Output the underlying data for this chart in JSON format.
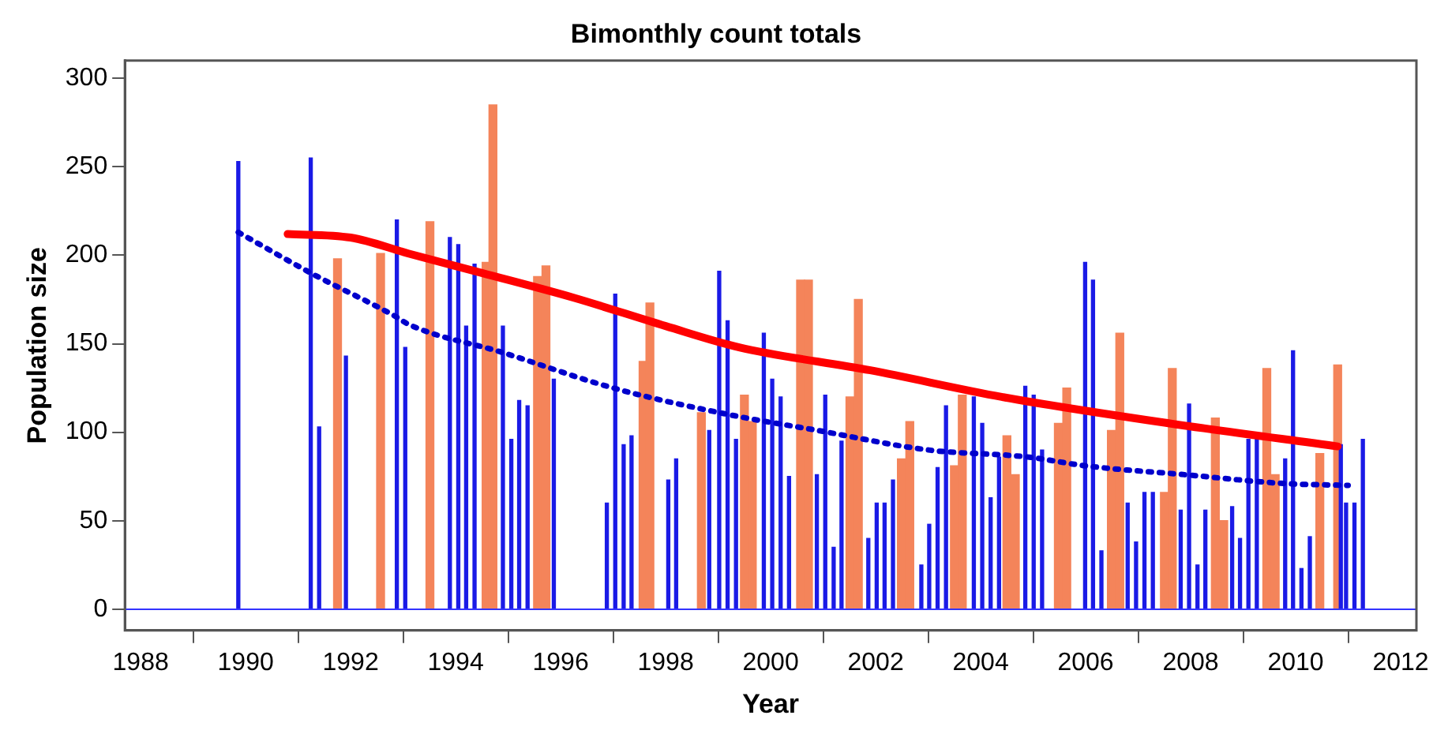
{
  "chart_data": {
    "type": "bar",
    "title": "Bimonthly count totals",
    "xlabel": "Year",
    "ylabel": "Population size",
    "xlim": [
      1987.7,
      2012.3
    ],
    "xticks": [
      1988,
      1990,
      1992,
      1994,
      1996,
      1998,
      2000,
      2002,
      2004,
      2006,
      2008,
      2010,
      2012
    ],
    "ylim": [
      -12,
      310
    ],
    "yticks": [
      0,
      50,
      100,
      150,
      200,
      250,
      300
    ],
    "grid": false,
    "legend": false,
    "ref_lines": [
      {
        "axis": "y",
        "value": 0,
        "color": "#3333ff"
      }
    ],
    "series": [
      {
        "color": "#f4845a",
        "x": [
          1991.75,
          1992.57,
          1993.51,
          1994.58,
          1994.71,
          1995.56,
          1995.72,
          1997.57,
          1997.7,
          1998.68,
          1999.5,
          1999.65,
          2000.57,
          2000.72,
          2001.51,
          2001.67,
          2002.49,
          2002.65,
          2003.5,
          2003.65,
          2004.5,
          2004.66,
          2005.48,
          2005.64,
          2006.49,
          2006.65,
          2007.5,
          2007.65,
          2008.47,
          2008.63,
          2009.45,
          2009.61,
          2010.46,
          2010.8
        ],
        "values": [
          198,
          201,
          219,
          196,
          285,
          188,
          194,
          140,
          173,
          111,
          121,
          106,
          186,
          186,
          120,
          175,
          85,
          106,
          81,
          121,
          98,
          76,
          105,
          125,
          101,
          156,
          66,
          136,
          108,
          50,
          136,
          76,
          88,
          138
        ]
      },
      {
        "color": "#1a1ae6",
        "x": [
          1989.86,
          1991.24,
          1991.4,
          1991.91,
          1992.88,
          1993.04,
          1993.89,
          1994.05,
          1994.2,
          1994.36,
          1994.9,
          1995.06,
          1995.21,
          1995.37,
          1995.87,
          1996.88,
          1997.04,
          1997.2,
          1997.35,
          1998.05,
          1998.2,
          1998.83,
          1999.02,
          1999.18,
          1999.34,
          1999.87,
          2000.03,
          2000.19,
          2000.35,
          2000.88,
          2001.04,
          2001.2,
          2001.35,
          2001.86,
          2002.02,
          2002.17,
          2002.33,
          2002.87,
          2003.02,
          2003.18,
          2003.34,
          2003.87,
          2004.03,
          2004.19,
          2004.35,
          2004.85,
          2005.01,
          2005.17,
          2005.99,
          2006.14,
          2006.3,
          2006.8,
          2006.96,
          2007.12,
          2007.28,
          2007.81,
          2007.97,
          2008.13,
          2008.28,
          2008.79,
          2008.94,
          2009.1,
          2009.26,
          2009.8,
          2009.95,
          2010.11,
          2010.27,
          2010.86,
          2010.96,
          2011.12,
          2011.28
        ],
        "values": [
          253,
          255,
          103,
          143,
          220,
          148,
          210,
          206,
          160,
          195,
          160,
          96,
          118,
          115,
          130,
          60,
          178,
          93,
          98,
          73,
          85,
          101,
          191,
          163,
          96,
          156,
          130,
          120,
          75,
          76,
          121,
          35,
          95,
          40,
          60,
          60,
          73,
          25,
          48,
          80,
          115,
          120,
          105,
          63,
          86,
          126,
          121,
          90,
          196,
          186,
          33,
          60,
          38,
          66,
          66,
          56,
          116,
          25,
          56,
          58,
          40,
          96,
          98,
          85,
          146,
          23,
          41,
          93,
          60,
          60,
          96
        ]
      },
      {
        "type": "line",
        "color": "#ff0000",
        "line_style": "solid",
        "x": [
          1990.8,
          1992,
          1993.1,
          1994.5,
          1996.25,
          1998,
          1999.4,
          2001.9,
          2004.4,
          2007.6,
          2010.8
        ],
        "values": [
          212,
          210,
          201,
          190,
          176,
          160,
          148,
          135,
          120,
          105,
          92
        ]
      },
      {
        "type": "line",
        "color": "#0000cc",
        "line_style": "dotted",
        "x": [
          1989.86,
          1991.24,
          1992.88,
          1993.1,
          1994.9,
          1997,
          1999.2,
          2000.9,
          2003,
          2004.9,
          2006,
          2007.9,
          2009.8,
          2011
        ],
        "values": [
          213,
          190,
          165,
          161,
          145,
          125,
          110,
          101,
          90,
          86,
          81,
          76,
          71,
          70
        ]
      }
    ]
  }
}
